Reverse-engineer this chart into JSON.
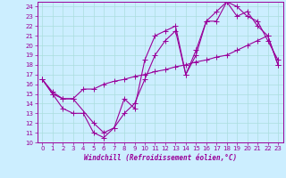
{
  "xlabel": "Windchill (Refroidissement éolien,°C)",
  "bg_color": "#cceeff",
  "line_color": "#990099",
  "grid_color": "#aadddd",
  "xlim": [
    -0.5,
    23.5
  ],
  "ylim": [
    10,
    24.5
  ],
  "xticks": [
    0,
    1,
    2,
    3,
    4,
    5,
    6,
    7,
    8,
    9,
    10,
    11,
    12,
    13,
    14,
    15,
    16,
    17,
    18,
    19,
    20,
    21,
    22,
    23
  ],
  "yticks": [
    10,
    11,
    12,
    13,
    14,
    15,
    16,
    17,
    18,
    19,
    20,
    21,
    22,
    23,
    24
  ],
  "line1_x": [
    0,
    1,
    2,
    3,
    4,
    5,
    6,
    7,
    8,
    9,
    10,
    11,
    12,
    13,
    14,
    15,
    16,
    17,
    18,
    19,
    20,
    21,
    22,
    23
  ],
  "line1_y": [
    16.5,
    15.0,
    13.5,
    13.0,
    13.0,
    11.0,
    10.5,
    11.5,
    13.0,
    14.0,
    16.5,
    19.0,
    20.5,
    21.5,
    17.0,
    19.5,
    22.5,
    23.5,
    24.5,
    23.0,
    23.5,
    22.0,
    21.0,
    18.0
  ],
  "line2_x": [
    0,
    1,
    2,
    3,
    4,
    5,
    6,
    7,
    8,
    9,
    10,
    11,
    12,
    13,
    14,
    15,
    16,
    17,
    18,
    19,
    20,
    21,
    22,
    23
  ],
  "line2_y": [
    16.5,
    15.2,
    14.5,
    14.5,
    15.5,
    15.5,
    16.0,
    16.3,
    16.5,
    16.8,
    17.0,
    17.3,
    17.5,
    17.8,
    18.0,
    18.3,
    18.5,
    18.8,
    19.0,
    19.5,
    20.0,
    20.5,
    21.0,
    18.0
  ],
  "line3_x": [
    0,
    1,
    2,
    3,
    5,
    6,
    7,
    8,
    9,
    10,
    11,
    12,
    13,
    14,
    15,
    16,
    17,
    18,
    19,
    20,
    21,
    22,
    23
  ],
  "line3_y": [
    16.5,
    15.0,
    14.5,
    14.5,
    12.0,
    11.0,
    11.5,
    14.5,
    13.5,
    18.5,
    21.0,
    21.5,
    22.0,
    17.0,
    19.0,
    22.5,
    22.5,
    24.5,
    24.0,
    23.0,
    22.5,
    20.5,
    18.5
  ],
  "tick_fontsize": 5,
  "xlabel_fontsize": 5.5
}
